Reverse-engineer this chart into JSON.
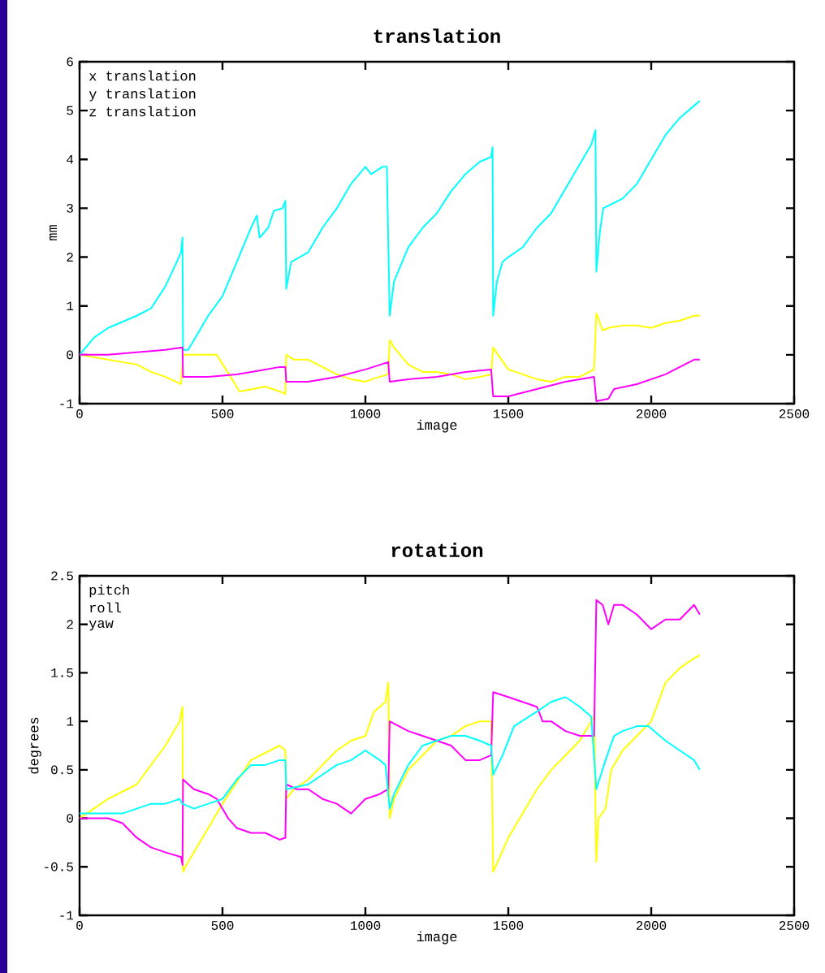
{
  "chart_data": [
    {
      "type": "line",
      "title": "translation",
      "xlabel": "image",
      "ylabel": "mm",
      "xlim": [
        0,
        2500
      ],
      "xticks": [
        0,
        500,
        1000,
        1500,
        2000,
        2500
      ],
      "ylim": [
        -1,
        6
      ],
      "yticks": [
        -1,
        0,
        1,
        2,
        3,
        4,
        5,
        6
      ],
      "grid": false,
      "marker": "none",
      "line_style": "solid",
      "annotations": [
        "x translation",
        "y translation",
        "z translation"
      ],
      "series": [
        {
          "color": "#00ffff",
          "x": [
            0,
            50,
            100,
            200,
            250,
            300,
            340,
            355,
            360,
            362,
            380,
            450,
            500,
            550,
            600,
            620,
            630,
            660,
            680,
            710,
            720,
            723,
            740,
            800,
            850,
            900,
            950,
            1000,
            1020,
            1060,
            1075,
            1085,
            1100,
            1150,
            1200,
            1250,
            1300,
            1350,
            1400,
            1440,
            1445,
            1447,
            1460,
            1480,
            1500,
            1550,
            1600,
            1650,
            1700,
            1750,
            1790,
            1805,
            1808,
            1820,
            1832,
            1900,
            1950,
            2000,
            2050,
            2100,
            2150,
            2170
          ],
          "values": [
            0,
            0.35,
            0.55,
            0.8,
            0.95,
            1.4,
            1.9,
            2.1,
            2.4,
            0.1,
            0.1,
            0.8,
            1.2,
            1.9,
            2.6,
            2.85,
            2.4,
            2.6,
            2.95,
            3.0,
            3.15,
            1.35,
            1.9,
            2.1,
            2.6,
            3.0,
            3.5,
            3.85,
            3.7,
            3.85,
            3.85,
            0.8,
            1.5,
            2.2,
            2.6,
            2.9,
            3.35,
            3.7,
            3.95,
            4.05,
            4.25,
            0.8,
            1.5,
            1.9,
            2.0,
            2.2,
            2.6,
            2.9,
            3.4,
            3.9,
            4.3,
            4.6,
            1.7,
            2.5,
            3.0,
            3.2,
            3.5,
            4.0,
            4.5,
            4.85,
            5.1,
            5.2
          ]
        },
        {
          "color": "#ffff00",
          "x": [
            0,
            100,
            200,
            250,
            300,
            355,
            362,
            480,
            560,
            650,
            700,
            720,
            723,
            750,
            800,
            850,
            900,
            950,
            1000,
            1050,
            1080,
            1085,
            1100,
            1150,
            1200,
            1250,
            1300,
            1350,
            1400,
            1440,
            1447,
            1470,
            1500,
            1550,
            1600,
            1650,
            1700,
            1750,
            1800,
            1808,
            1830,
            1850,
            1900,
            1950,
            2000,
            2050,
            2100,
            2150,
            2170
          ],
          "values": [
            0,
            -0.1,
            -0.2,
            -0.35,
            -0.45,
            -0.6,
            0.0,
            0.0,
            -0.75,
            -0.65,
            -0.75,
            -0.8,
            0.0,
            -0.1,
            -0.1,
            -0.25,
            -0.4,
            -0.5,
            -0.55,
            -0.45,
            -0.4,
            0.3,
            0.15,
            -0.2,
            -0.35,
            -0.35,
            -0.4,
            -0.5,
            -0.45,
            -0.4,
            0.15,
            -0.05,
            -0.3,
            -0.4,
            -0.5,
            -0.55,
            -0.45,
            -0.45,
            -0.3,
            0.85,
            0.5,
            0.55,
            0.6,
            0.6,
            0.55,
            0.65,
            0.7,
            0.8,
            0.8
          ]
        },
        {
          "color": "#ff00ff",
          "x": [
            0,
            100,
            200,
            300,
            360,
            362,
            450,
            550,
            650,
            700,
            720,
            723,
            800,
            900,
            1000,
            1080,
            1085,
            1150,
            1250,
            1350,
            1440,
            1447,
            1500,
            1600,
            1700,
            1800,
            1808,
            1850,
            1870,
            1950,
            2050,
            2150,
            2170
          ],
          "values": [
            0,
            0,
            0.05,
            0.1,
            0.15,
            -0.45,
            -0.45,
            -0.4,
            -0.3,
            -0.25,
            -0.25,
            -0.55,
            -0.55,
            -0.45,
            -0.3,
            -0.15,
            -0.55,
            -0.5,
            -0.45,
            -0.35,
            -0.3,
            -0.85,
            -0.85,
            -0.7,
            -0.55,
            -0.45,
            -0.95,
            -0.9,
            -0.7,
            -0.6,
            -0.4,
            -0.1,
            -0.1
          ]
        }
      ]
    },
    {
      "type": "line",
      "title": "rotation",
      "xlabel": "image",
      "ylabel": "degrees",
      "xlim": [
        0,
        2500
      ],
      "xticks": [
        0,
        500,
        1000,
        1500,
        2000,
        2500
      ],
      "ylim": [
        -1,
        2.5
      ],
      "yticks": [
        -1,
        -0.5,
        0,
        0.5,
        1,
        1.5,
        2,
        2.5
      ],
      "grid": false,
      "marker": "none",
      "line_style": "solid",
      "annotations": [
        "pitch",
        "roll",
        "yaw"
      ],
      "series": [
        {
          "color": "#ffff00",
          "x": [
            0,
            100,
            200,
            300,
            350,
            360,
            362,
            380,
            500,
            600,
            700,
            720,
            723,
            750,
            800,
            850,
            900,
            950,
            1000,
            1030,
            1070,
            1080,
            1085,
            1100,
            1150,
            1200,
            1250,
            1300,
            1350,
            1400,
            1440,
            1447,
            1470,
            1500,
            1550,
            1600,
            1650,
            1700,
            1750,
            1800,
            1808,
            1815,
            1840,
            1860,
            1900,
            1950,
            2000,
            2050,
            2100,
            2150,
            2170
          ],
          "values": [
            0,
            0.2,
            0.35,
            0.75,
            1.0,
            1.15,
            -0.55,
            -0.45,
            0.15,
            0.6,
            0.75,
            0.7,
            0.2,
            0.3,
            0.4,
            0.55,
            0.7,
            0.8,
            0.85,
            1.1,
            1.2,
            1.4,
            0.0,
            0.2,
            0.5,
            0.65,
            0.8,
            0.85,
            0.95,
            1.0,
            1.0,
            -0.55,
            -0.4,
            -0.2,
            0.05,
            0.3,
            0.5,
            0.65,
            0.8,
            1.05,
            -0.45,
            0.0,
            0.1,
            0.5,
            0.7,
            0.85,
            1.0,
            1.4,
            1.55,
            1.65,
            1.68
          ]
        },
        {
          "color": "#ff00ff",
          "x": [
            0,
            100,
            150,
            200,
            250,
            300,
            355,
            360,
            362,
            400,
            450,
            480,
            520,
            550,
            600,
            650,
            700,
            720,
            723,
            760,
            800,
            850,
            900,
            950,
            1000,
            1050,
            1080,
            1085,
            1150,
            1200,
            1250,
            1300,
            1350,
            1400,
            1440,
            1447,
            1500,
            1550,
            1600,
            1620,
            1650,
            1700,
            1750,
            1800,
            1808,
            1830,
            1850,
            1870,
            1900,
            1950,
            2000,
            2050,
            2100,
            2150,
            2170
          ],
          "values": [
            0,
            0,
            -0.05,
            -0.2,
            -0.3,
            -0.35,
            -0.4,
            -0.48,
            0.4,
            0.3,
            0.25,
            0.2,
            0.0,
            -0.1,
            -0.15,
            -0.15,
            -0.22,
            -0.2,
            0.35,
            0.3,
            0.3,
            0.2,
            0.15,
            0.05,
            0.2,
            0.25,
            0.3,
            1.0,
            0.9,
            0.85,
            0.8,
            0.75,
            0.6,
            0.6,
            0.65,
            1.3,
            1.25,
            1.2,
            1.15,
            1.0,
            1.0,
            0.9,
            0.85,
            0.85,
            2.25,
            2.2,
            2.0,
            2.2,
            2.2,
            2.1,
            1.95,
            2.05,
            2.05,
            2.2,
            2.1
          ]
        },
        {
          "color": "#00ffff",
          "x": [
            0,
            100,
            150,
            200,
            250,
            300,
            350,
            360,
            400,
            450,
            500,
            550,
            600,
            650,
            700,
            720,
            723,
            800,
            850,
            900,
            950,
            1000,
            1050,
            1070,
            1085,
            1100,
            1150,
            1200,
            1250,
            1300,
            1350,
            1400,
            1440,
            1447,
            1480,
            1520,
            1600,
            1650,
            1700,
            1750,
            1790,
            1808,
            1840,
            1870,
            1900,
            1950,
            1990,
            2050,
            2100,
            2150,
            2170
          ],
          "values": [
            0.05,
            0.05,
            0.05,
            0.1,
            0.15,
            0.15,
            0.2,
            0.15,
            0.1,
            0.15,
            0.2,
            0.4,
            0.55,
            0.55,
            0.6,
            0.6,
            0.3,
            0.35,
            0.45,
            0.55,
            0.6,
            0.7,
            0.6,
            0.55,
            0.1,
            0.25,
            0.55,
            0.75,
            0.8,
            0.85,
            0.85,
            0.8,
            0.75,
            0.45,
            0.65,
            0.95,
            1.1,
            1.2,
            1.25,
            1.15,
            1.05,
            0.3,
            0.6,
            0.85,
            0.9,
            0.95,
            0.95,
            0.8,
            0.7,
            0.6,
            0.5
          ]
        }
      ]
    }
  ]
}
